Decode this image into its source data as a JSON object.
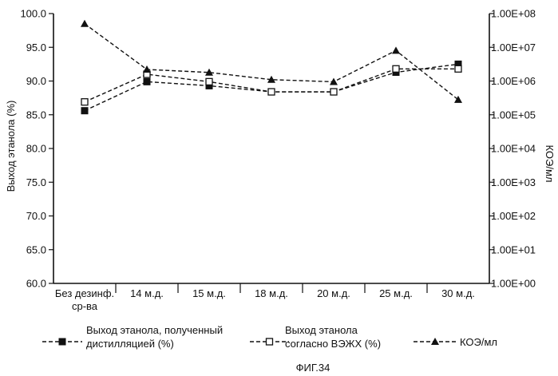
{
  "chart_data": {
    "type": "line",
    "categories": [
      "Без дезинф. ср-ва",
      "14 м.д.",
      "15 м.д.",
      "18 м.д.",
      "20 м.д.",
      "25 м.д.",
      "30 м.д."
    ],
    "category_lines": [
      [
        "Без дезинф.",
        "ср-ва"
      ],
      [
        "14 м.д."
      ],
      [
        "15 м.д."
      ],
      [
        "18 м.д."
      ],
      [
        "20 м.д."
      ],
      [
        "25 м.д."
      ],
      [
        "30 м.д."
      ]
    ],
    "ylabel": "Выход этанола (%)",
    "y2label": "КОЭ/мл",
    "ylim": [
      60,
      100
    ],
    "yticks": [
      "60.0",
      "65.0",
      "70.0",
      "75.0",
      "80.0",
      "85.0",
      "90.0",
      "95.0",
      "100.0"
    ],
    "y2scale": "log",
    "y2lim": [
      1,
      100000000
    ],
    "y2ticks": [
      "1.00E+00",
      "1.00E+01",
      "1.00E+02",
      "1.00E+03",
      "1.00E+04",
      "1.00E+05",
      "1.00E+06",
      "1.00E+07",
      "1.00E+08"
    ],
    "series": [
      {
        "name": "Выход этанола, полученный дистилляцией (%)",
        "name_lines": [
          "Выход этанола, полученный",
          "дистилляцией (%)"
        ],
        "marker": "square-filled",
        "axis": "left",
        "values": [
          85.6,
          89.9,
          89.3,
          88.4,
          88.4,
          91.3,
          92.5
        ]
      },
      {
        "name": "Выход этанола согласно ВЭЖХ (%)",
        "name_lines": [
          "Выход этанола",
          "согласно ВЭЖХ (%)"
        ],
        "marker": "square-open",
        "axis": "left",
        "values": [
          86.9,
          91.0,
          89.9,
          88.4,
          88.4,
          91.8,
          91.8
        ]
      },
      {
        "name": "КОЭ/мл",
        "name_lines": [
          "КОЭ/мл"
        ],
        "marker": "triangle-filled",
        "axis": "right",
        "values": [
          50000000,
          2200000,
          1800000,
          1100000,
          950000,
          8000000,
          280000
        ]
      }
    ],
    "legend_position": "bottom",
    "grid": false
  },
  "figure": {
    "caption": "ФИГ.34"
  }
}
